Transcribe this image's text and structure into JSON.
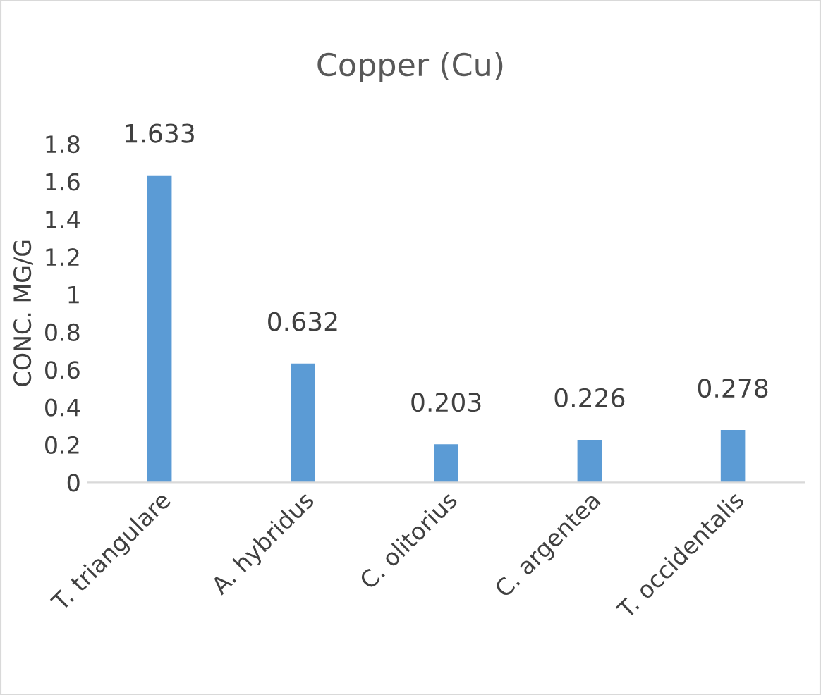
{
  "chart_data": {
    "type": "bar",
    "title": "Copper (Cu)",
    "ylabel": "CONC. MG/G",
    "categories": [
      "T. triangulare",
      "A. hybridus",
      "C. olitorius",
      "C. argentea",
      "T. occidentalis"
    ],
    "values": [
      1.633,
      0.632,
      0.203,
      0.226,
      0.278
    ],
    "color": "#5b9bd5",
    "data_labels": true,
    "ylim": [
      0,
      1.8
    ],
    "yticks": [
      0,
      {
        "value": 0.2,
        "label": "0.2"
      },
      {
        "value": 0.4,
        "label": "0.4"
      },
      {
        "value": 0.6,
        "label": "0.6"
      },
      {
        "value": 0.8,
        "label": "0.8"
      },
      1,
      {
        "value": 1.2,
        "label": "1.2"
      },
      {
        "value": 1.4,
        "label": "1.4"
      },
      {
        "value": 1.6,
        "label": "1.6"
      },
      {
        "value": 1.8,
        "label": "1.8"
      }
    ],
    "grid": false,
    "legend": false
  }
}
